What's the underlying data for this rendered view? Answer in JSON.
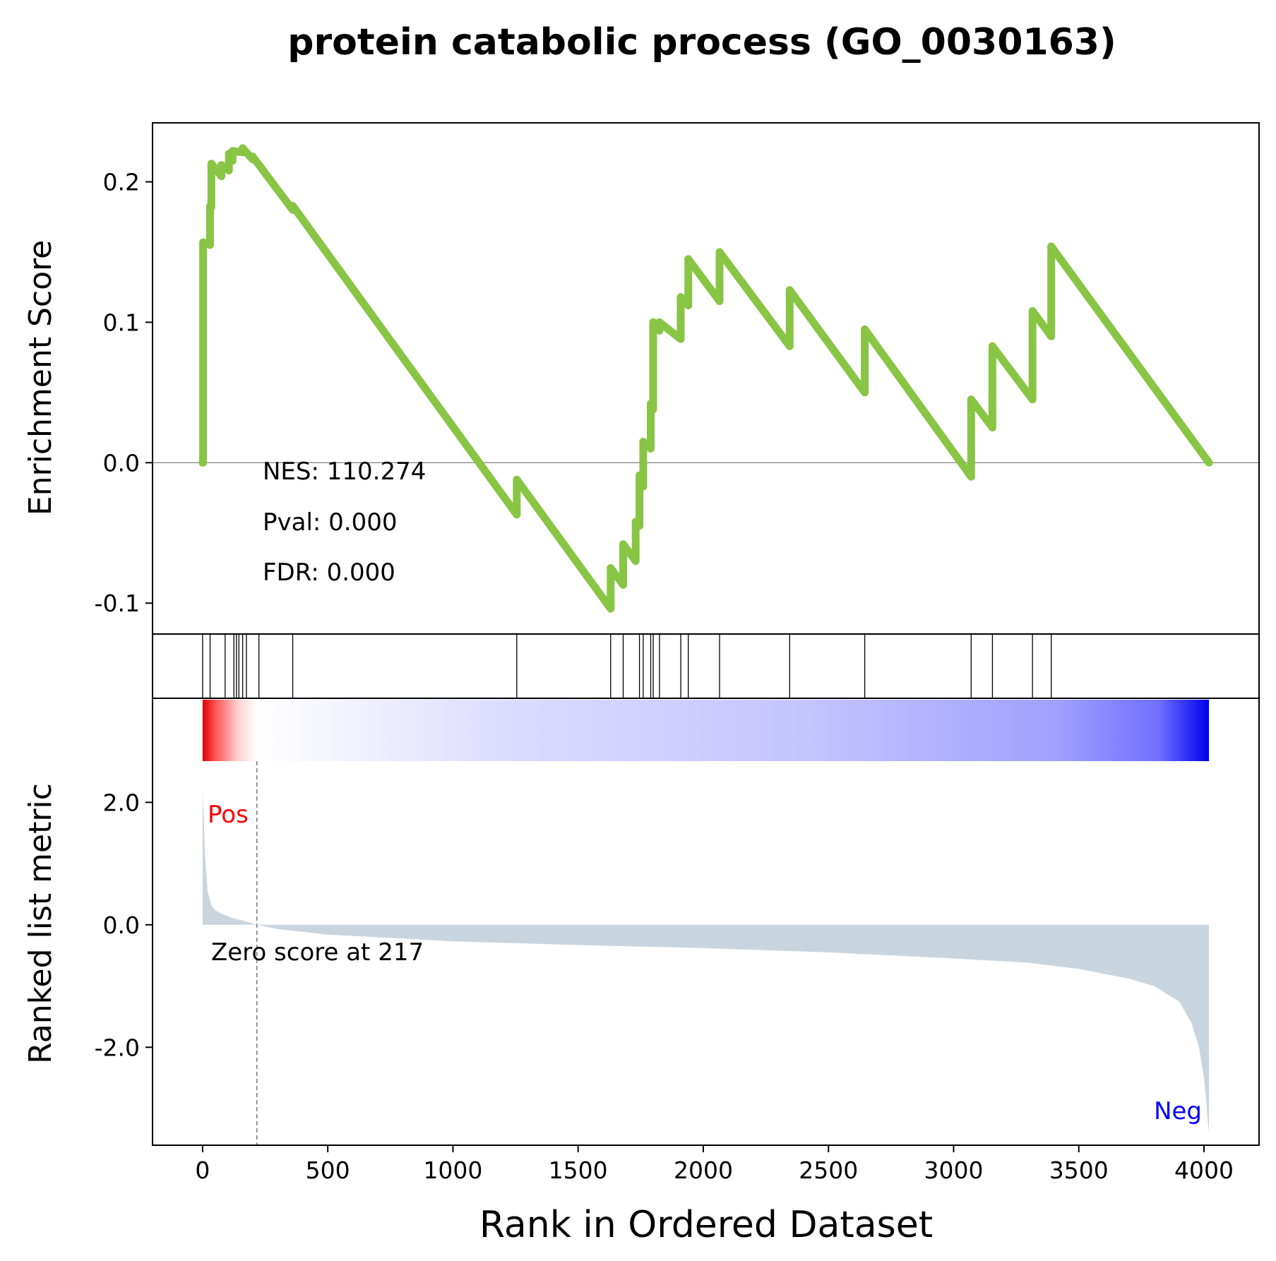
{
  "title": "protein catabolic process (GO_0030163)",
  "colors": {
    "es_line": "#88c544",
    "metric_fill": "#c9d5de",
    "pos_label": "#ff0000",
    "neg_label": "#0000ff",
    "zero_line": "#808080",
    "hit_line": "#000000"
  },
  "stats": {
    "nes": "NES: 110.274",
    "pval": "Pval: 0.000",
    "fdr": "FDR: 0.000"
  },
  "labels": {
    "pos": "Pos",
    "neg": "Neg",
    "zero_score": "Zero score at 217"
  },
  "chart_data": [
    {
      "type": "line",
      "panel": "enrichment",
      "ylabel": "Enrichment Score",
      "xlim": [
        -200,
        4220
      ],
      "ylim": [
        -0.122,
        0.242
      ],
      "yticks": [
        -0.1,
        0.0,
        0.1,
        0.2
      ],
      "ytick_labels": [
        "-0.1",
        "0.0",
        "0.1",
        "0.2"
      ],
      "zero_line": 0.0,
      "x": [
        0,
        2,
        2,
        30,
        30,
        35,
        35,
        75,
        75,
        105,
        105,
        120,
        120,
        160,
        160,
        200,
        200,
        360,
        360,
        1255,
        1255,
        1630,
        1630,
        1680,
        1680,
        1730,
        1730,
        1745,
        1745,
        1760,
        1760,
        1790,
        1790,
        1800,
        1800,
        1825,
        1825,
        1910,
        1910,
        1940,
        1940,
        2065,
        2065,
        2345,
        2345,
        2645,
        2645,
        3070,
        3070,
        3155,
        3155,
        3315,
        3315,
        3390,
        3390,
        4020
      ],
      "y": [
        0.0,
        0.0,
        0.157,
        0.155,
        0.183,
        0.182,
        0.213,
        0.204,
        0.212,
        0.208,
        0.22,
        0.215,
        0.222,
        0.221,
        0.224,
        0.216,
        0.218,
        0.18,
        0.183,
        -0.037,
        -0.012,
        -0.104,
        -0.075,
        -0.087,
        -0.058,
        -0.07,
        -0.042,
        -0.045,
        -0.009,
        -0.017,
        0.015,
        0.01,
        0.042,
        0.038,
        0.1,
        0.094,
        0.1,
        0.088,
        0.118,
        0.112,
        0.145,
        0.115,
        0.15,
        0.083,
        0.123,
        0.05,
        0.095,
        -0.01,
        0.045,
        0.025,
        0.083,
        0.045,
        0.108,
        0.09,
        0.154,
        0.0
      ]
    },
    {
      "type": "scatter",
      "panel": "hits",
      "x": [
        0,
        30,
        90,
        125,
        135,
        145,
        160,
        175,
        225,
        360,
        1255,
        1630,
        1680,
        1745,
        1760,
        1790,
        1800,
        1825,
        1910,
        1940,
        2065,
        2345,
        2645,
        3070,
        3155,
        3315,
        3390
      ]
    },
    {
      "type": "heatmap",
      "panel": "colorbar",
      "colormap": "red-white-blue",
      "x_range": [
        0,
        4020
      ],
      "zero_at": 217
    },
    {
      "type": "area",
      "panel": "ranked_metric",
      "xlabel": "Rank in Ordered Dataset",
      "ylabel": "Ranked list metric",
      "xlim": [
        -200,
        4220
      ],
      "ylim": [
        -3.6,
        3.7
      ],
      "xticks": [
        0,
        500,
        1000,
        1500,
        2000,
        2500,
        3000,
        3500,
        4000
      ],
      "xtick_labels": [
        "0",
        "500",
        "1000",
        "1500",
        "2000",
        "2500",
        "3000",
        "3500",
        "4000"
      ],
      "yticks": [
        -2.0,
        0.0,
        2.0
      ],
      "ytick_labels": [
        "-2.0",
        "0.0",
        "2.0"
      ],
      "zero_score_rank": 217,
      "x": [
        0,
        5,
        10,
        20,
        35,
        50,
        80,
        120,
        160,
        217,
        300,
        500,
        1000,
        1500,
        2000,
        2500,
        3000,
        3300,
        3500,
        3700,
        3800,
        3900,
        3950,
        3980,
        4000,
        4010,
        4015,
        4020
      ],
      "y": [
        2.2,
        1.7,
        1.1,
        0.55,
        0.32,
        0.24,
        0.17,
        0.11,
        0.07,
        0.0,
        -0.07,
        -0.16,
        -0.27,
        -0.33,
        -0.38,
        -0.45,
        -0.55,
        -0.62,
        -0.72,
        -0.88,
        -1.0,
        -1.25,
        -1.6,
        -2.0,
        -2.5,
        -2.9,
        -3.2,
        -3.4
      ]
    }
  ]
}
